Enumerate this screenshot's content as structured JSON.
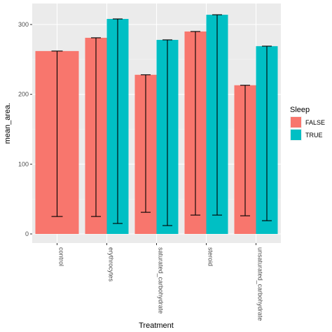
{
  "chart_data": {
    "type": "bar",
    "xlabel": "Treatment",
    "ylabel": "mean_area.",
    "ylim": [
      0,
      320
    ],
    "yticks": [
      0,
      100,
      200,
      300
    ],
    "grid": true,
    "legend_position": "right",
    "legend_title": "Sleep",
    "categories": [
      "control",
      "erythrocytes",
      "saturated_carbohydrate",
      "steroid",
      "unsaturated_carbohydrate"
    ],
    "series": [
      {
        "name": "FALSE",
        "color": "#F8766D",
        "values": [
          262,
          281,
          228,
          290,
          213
        ],
        "error_low": [
          25,
          25,
          31,
          27,
          26
        ],
        "error_high": [
          262,
          281,
          228,
          290,
          213
        ]
      },
      {
        "name": "TRUE",
        "color": "#00BFC4",
        "values": [
          null,
          308,
          278,
          314,
          269
        ],
        "error_low": [
          null,
          15,
          12,
          27,
          19
        ],
        "error_high": [
          null,
          308,
          278,
          314,
          269
        ]
      }
    ]
  }
}
